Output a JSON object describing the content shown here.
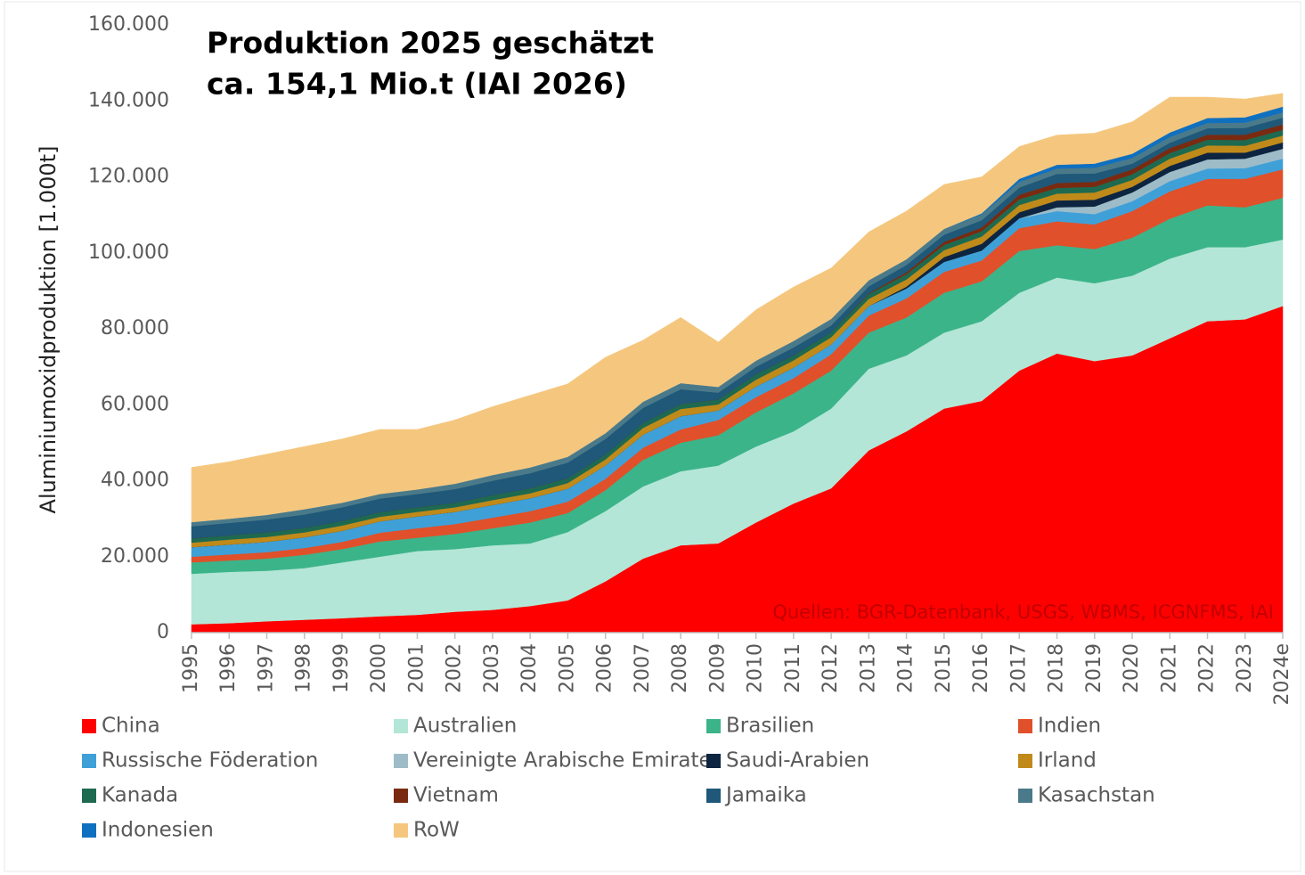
{
  "chart_data": {
    "type": "stacked-area",
    "annotations": [
      "Produktion 2025 geschätzt",
      "ca.  154,1 Mio.t (IAI 2026)"
    ],
    "source": "Quellen: BGR-Datenbank, USGS, WBMS, ICGNFMS,  IAI",
    "y_label": "Aluminiumoxidproduktion [1.000t]",
    "categories": [
      "1995",
      "1996",
      "1997",
      "1998",
      "1999",
      "2000",
      "2001",
      "2002",
      "2003",
      "2004",
      "2005",
      "2006",
      "2007",
      "2008",
      "2009",
      "2010",
      "2011",
      "2012",
      "2013",
      "2014",
      "2015",
      "2016",
      "2017",
      "2018",
      "2019",
      "2020",
      "2021",
      "2022",
      "2023",
      "2024e"
    ],
    "ylim": [
      0,
      160000
    ],
    "yticks": [
      0,
      {
        "value": 20000,
        "label": "20.000"
      },
      {
        "value": 40000,
        "label": "40.000"
      },
      {
        "value": 60000,
        "label": "60.000"
      },
      {
        "value": 80000,
        "label": "80.000"
      },
      {
        "value": 100000,
        "label": "100.000"
      },
      {
        "value": 120000,
        "label": "120.000"
      },
      {
        "value": 140000,
        "label": "140.000"
      },
      {
        "value": 160000,
        "label": "160.000"
      }
    ],
    "series": [
      {
        "name": "China",
        "color": "#ff0000",
        "values": [
          2200,
          2500,
          3000,
          3400,
          3800,
          4300,
          4700,
          5500,
          6000,
          7000,
          8500,
          13500,
          19500,
          23000,
          23500,
          29000,
          34000,
          38000,
          48000,
          53000,
          59000,
          61000,
          69000,
          73500,
          71500,
          73000,
          77500,
          82000,
          82500,
          86000
        ]
      },
      {
        "name": "Australien",
        "color": "#b3e6d6",
        "values": [
          13300,
          13500,
          13300,
          13600,
          14700,
          15700,
          16800,
          16500,
          17000,
          16500,
          18000,
          18500,
          19000,
          19500,
          20500,
          20000,
          19000,
          21000,
          21500,
          20000,
          20000,
          21000,
          20500,
          20000,
          20500,
          21000,
          21000,
          19500,
          19000,
          17500
        ]
      },
      {
        "name": "Brasilien",
        "color": "#3cb48a",
        "values": [
          3000,
          3000,
          3200,
          3500,
          3500,
          4000,
          3500,
          4000,
          4500,
          5500,
          5000,
          5500,
          7000,
          7500,
          8000,
          9000,
          10000,
          10000,
          9500,
          10000,
          10500,
          10500,
          11000,
          8500,
          9000,
          10000,
          10500,
          11000,
          10500,
          11000
        ]
      },
      {
        "name": "Indien",
        "color": "#e0502a",
        "values": [
          1500,
          1600,
          1700,
          1800,
          1900,
          2300,
          2500,
          2600,
          2800,
          3000,
          3000,
          3000,
          3200,
          3500,
          4000,
          4000,
          4000,
          4300,
          4500,
          5000,
          5500,
          5500,
          6000,
          6300,
          6500,
          7000,
          7200,
          7000,
          7500,
          7500
        ]
      },
      {
        "name": "Russische Föderation",
        "color": "#3fa0d8",
        "values": [
          2500,
          2600,
          2700,
          2800,
          2900,
          3000,
          3100,
          3200,
          3300,
          3400,
          3400,
          3500,
          3400,
          3500,
          2500,
          2800,
          2800,
          2600,
          2500,
          2600,
          2600,
          2600,
          2600,
          2700,
          2700,
          2600,
          2700,
          2700,
          2800,
          2800
        ]
      },
      {
        "name": "Vereinigte Arabische Emirate",
        "color": "#9dbcc8",
        "values": [
          0,
          0,
          0,
          0,
          0,
          0,
          0,
          0,
          0,
          0,
          0,
          0,
          0,
          0,
          0,
          0,
          0,
          0,
          0,
          0,
          0,
          0,
          0,
          1000,
          2000,
          2300,
          2400,
          2400,
          2500,
          2600
        ]
      },
      {
        "name": "Saudi-Arabien",
        "color": "#0d2540",
        "values": [
          0,
          0,
          0,
          0,
          0,
          0,
          0,
          0,
          0,
          0,
          0,
          0,
          0,
          0,
          0,
          0,
          0,
          0,
          0,
          500,
          1300,
          1800,
          1600,
          1800,
          1800,
          1500,
          1600,
          1800,
          1600,
          1700
        ]
      },
      {
        "name": "Irland",
        "color": "#c08a1a",
        "values": [
          1200,
          1300,
          1300,
          1300,
          1400,
          1200,
          1200,
          1200,
          1300,
          1300,
          1500,
          1600,
          1800,
          1900,
          1600,
          1800,
          1900,
          1900,
          1900,
          1900,
          1800,
          1900,
          1900,
          1800,
          1900,
          1800,
          1900,
          1900,
          1800,
          1800
        ]
      },
      {
        "name": "Kanada",
        "color": "#1e6a50",
        "values": [
          1100,
          1100,
          1200,
          1200,
          1200,
          1200,
          1200,
          1200,
          1300,
          1300,
          1300,
          1300,
          1300,
          1300,
          1300,
          1400,
          1300,
          1300,
          1300,
          1400,
          1400,
          1400,
          1500,
          1500,
          1500,
          1500,
          1500,
          1500,
          1500,
          1500
        ]
      },
      {
        "name": "Vietnam",
        "color": "#7a2a10",
        "values": [
          0,
          0,
          0,
          0,
          0,
          0,
          0,
          0,
          0,
          0,
          0,
          0,
          0,
          0,
          0,
          0,
          0,
          0,
          200,
          500,
          800,
          1000,
          1200,
          1300,
          1300,
          1300,
          1300,
          1300,
          1400,
          1400
        ]
      },
      {
        "name": "Jamaika",
        "color": "#1f5878",
        "values": [
          3200,
          3300,
          3400,
          3500,
          3600,
          3600,
          3500,
          3600,
          3800,
          4000,
          4100,
          4100,
          4000,
          3900,
          1800,
          2000,
          2100,
          1800,
          1800,
          1900,
          1900,
          1900,
          1900,
          2400,
          2200,
          1500,
          1400,
          1700,
          1800,
          1800
        ]
      },
      {
        "name": "Kasachstan",
        "color": "#4a7a8a",
        "values": [
          1100,
          1100,
          1200,
          1400,
          1200,
          1200,
          1200,
          1400,
          1500,
          1500,
          1500,
          1500,
          1600,
          1600,
          1500,
          1600,
          1700,
          1700,
          1600,
          1500,
          1500,
          1500,
          1500,
          1400,
          1500,
          1500,
          1500,
          1400,
          1400,
          1400
        ]
      },
      {
        "name": "Indonesien",
        "color": "#1070c0",
        "values": [
          0,
          0,
          0,
          0,
          0,
          0,
          0,
          0,
          0,
          0,
          0,
          0,
          0,
          0,
          0,
          0,
          0,
          0,
          0,
          0,
          0,
          300,
          800,
          1000,
          1100,
          1100,
          1200,
          1300,
          1400,
          1500
        ]
      },
      {
        "name": "RoW",
        "color": "#f5c77e",
        "values": [
          14400,
          15000,
          16000,
          16500,
          16800,
          17000,
          15800,
          16800,
          18000,
          19000,
          19200,
          20000,
          16200,
          17300,
          11800,
          13400,
          14200,
          13400,
          12700,
          12700,
          11700,
          9600,
          8500,
          7800,
          8000,
          8400,
          9300,
          5500,
          4800,
          3500
        ]
      }
    ]
  }
}
